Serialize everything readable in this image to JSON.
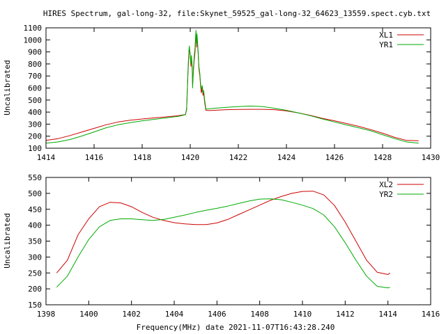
{
  "title": "HIRES Spectrum, gal-long-32, file:Skynet_59525_gal-long-32_64623_13559.spect.cyb.txt",
  "xlabel": "Frequency(MHz) date 2021-11-07T16:43:28.240",
  "chart_data": [
    {
      "type": "line",
      "ylabel": "Uncalibrated",
      "xlim": [
        1414,
        1430
      ],
      "ylim": [
        100,
        1100
      ],
      "xticks": [
        "1414",
        "1416",
        "1418",
        "1420",
        "1422",
        "1424",
        "1426",
        "1428",
        "1430"
      ],
      "yticks": [
        "100",
        "200",
        "300",
        "400",
        "500",
        "600",
        "700",
        "800",
        "900",
        "1000",
        "1100"
      ],
      "legend_position": "top-right",
      "series": [
        {
          "name": "XL1",
          "color": "#cc0000",
          "points": [
            [
              1414.0,
              165
            ],
            [
              1414.5,
              180
            ],
            [
              1415.0,
              205
            ],
            [
              1415.5,
              235
            ],
            [
              1416.0,
              265
            ],
            [
              1416.5,
              295
            ],
            [
              1417.0,
              318
            ],
            [
              1417.5,
              333
            ],
            [
              1418.0,
              343
            ],
            [
              1418.5,
              352
            ],
            [
              1419.0,
              360
            ],
            [
              1419.5,
              370
            ],
            [
              1419.8,
              380
            ],
            [
              1419.85,
              420
            ],
            [
              1419.9,
              700
            ],
            [
              1419.93,
              820
            ],
            [
              1419.96,
              940
            ],
            [
              1420.0,
              870
            ],
            [
              1420.03,
              780
            ],
            [
              1420.05,
              850
            ],
            [
              1420.08,
              760
            ],
            [
              1420.1,
              620
            ],
            [
              1420.13,
              740
            ],
            [
              1420.16,
              820
            ],
            [
              1420.2,
              900
            ],
            [
              1420.22,
              1000
            ],
            [
              1420.24,
              1060
            ],
            [
              1420.26,
              940
            ],
            [
              1420.28,
              1030
            ],
            [
              1420.3,
              980
            ],
            [
              1420.33,
              880
            ],
            [
              1420.36,
              760
            ],
            [
              1420.4,
              700
            ],
            [
              1420.43,
              620
            ],
            [
              1420.46,
              560
            ],
            [
              1420.5,
              600
            ],
            [
              1420.53,
              540
            ],
            [
              1420.56,
              560
            ],
            [
              1420.6,
              480
            ],
            [
              1420.63,
              440
            ],
            [
              1420.65,
              415
            ],
            [
              1420.8,
              413
            ],
            [
              1421.0,
              415
            ],
            [
              1421.5,
              420
            ],
            [
              1422.0,
              422
            ],
            [
              1422.5,
              423
            ],
            [
              1423.0,
              423
            ],
            [
              1423.5,
              420
            ],
            [
              1424.0,
              410
            ],
            [
              1424.5,
              393
            ],
            [
              1425.0,
              372
            ],
            [
              1425.5,
              348
            ],
            [
              1426.0,
              328
            ],
            [
              1426.5,
              305
            ],
            [
              1427.0,
              282
            ],
            [
              1427.5,
              255
            ],
            [
              1428.0,
              225
            ],
            [
              1428.5,
              190
            ],
            [
              1429.0,
              165
            ],
            [
              1429.5,
              162
            ]
          ]
        },
        {
          "name": "YR1",
          "color": "#00aa00",
          "points": [
            [
              1414.0,
              142
            ],
            [
              1414.5,
              152
            ],
            [
              1415.0,
              172
            ],
            [
              1415.5,
              202
            ],
            [
              1416.0,
              235
            ],
            [
              1416.5,
              270
            ],
            [
              1417.0,
              295
            ],
            [
              1417.5,
              313
            ],
            [
              1418.0,
              328
            ],
            [
              1418.5,
              340
            ],
            [
              1419.0,
              352
            ],
            [
              1419.5,
              365
            ],
            [
              1419.8,
              378
            ],
            [
              1419.85,
              430
            ],
            [
              1419.9,
              720
            ],
            [
              1419.93,
              860
            ],
            [
              1419.96,
              950
            ],
            [
              1420.0,
              880
            ],
            [
              1420.03,
              800
            ],
            [
              1420.05,
              870
            ],
            [
              1420.08,
              780
            ],
            [
              1420.1,
              600
            ],
            [
              1420.13,
              760
            ],
            [
              1420.16,
              850
            ],
            [
              1420.2,
              940
            ],
            [
              1420.22,
              1020
            ],
            [
              1420.24,
              1080
            ],
            [
              1420.26,
              960
            ],
            [
              1420.28,
              1050
            ],
            [
              1420.3,
              1000
            ],
            [
              1420.33,
              900
            ],
            [
              1420.36,
              780
            ],
            [
              1420.4,
              720
            ],
            [
              1420.43,
              640
            ],
            [
              1420.46,
              590
            ],
            [
              1420.5,
              620
            ],
            [
              1420.53,
              560
            ],
            [
              1420.56,
              580
            ],
            [
              1420.6,
              500
            ],
            [
              1420.63,
              460
            ],
            [
              1420.65,
              425
            ],
            [
              1420.8,
              428
            ],
            [
              1421.0,
              432
            ],
            [
              1421.5,
              440
            ],
            [
              1422.0,
              446
            ],
            [
              1422.5,
              450
            ],
            [
              1423.0,
              446
            ],
            [
              1423.5,
              432
            ],
            [
              1424.0,
              415
            ],
            [
              1424.5,
              393
            ],
            [
              1425.0,
              370
            ],
            [
              1425.5,
              343
            ],
            [
              1426.0,
              318
            ],
            [
              1426.5,
              293
            ],
            [
              1427.0,
              270
            ],
            [
              1427.5,
              245
            ],
            [
              1428.0,
              212
            ],
            [
              1428.5,
              180
            ],
            [
              1429.0,
              152
            ],
            [
              1429.5,
              142
            ]
          ]
        }
      ]
    },
    {
      "type": "line",
      "ylabel": "Uncalibrated",
      "xlim": [
        1398,
        1416
      ],
      "ylim": [
        150,
        550
      ],
      "xticks": [
        "1398",
        "1400",
        "1402",
        "1404",
        "1406",
        "1408",
        "1410",
        "1412",
        "1414",
        "1416"
      ],
      "yticks": [
        "150",
        "200",
        "250",
        "300",
        "350",
        "400",
        "450",
        "500",
        "550"
      ],
      "legend_position": "top-right",
      "series": [
        {
          "name": "XL2",
          "color": "#cc0000",
          "points": [
            [
              1398.5,
              250
            ],
            [
              1399.0,
              290
            ],
            [
              1399.5,
              370
            ],
            [
              1400.0,
              420
            ],
            [
              1400.5,
              458
            ],
            [
              1401.0,
              472
            ],
            [
              1401.5,
              470
            ],
            [
              1402.0,
              458
            ],
            [
              1402.5,
              440
            ],
            [
              1403.0,
              425
            ],
            [
              1403.5,
              415
            ],
            [
              1404.0,
              408
            ],
            [
              1404.5,
              404
            ],
            [
              1405.0,
              402
            ],
            [
              1405.5,
              402
            ],
            [
              1406.0,
              407
            ],
            [
              1406.5,
              418
            ],
            [
              1407.0,
              433
            ],
            [
              1407.5,
              448
            ],
            [
              1408.0,
              463
            ],
            [
              1408.5,
              478
            ],
            [
              1409.0,
              490
            ],
            [
              1409.5,
              500
            ],
            [
              1410.0,
              506
            ],
            [
              1410.5,
              507
            ],
            [
              1411.0,
              495
            ],
            [
              1411.5,
              462
            ],
            [
              1412.0,
              410
            ],
            [
              1412.5,
              350
            ],
            [
              1413.0,
              290
            ],
            [
              1413.5,
              252
            ],
            [
              1414.0,
              245
            ],
            [
              1414.1,
              250
            ]
          ]
        },
        {
          "name": "YR2",
          "color": "#00aa00",
          "points": [
            [
              1398.5,
              205
            ],
            [
              1399.0,
              240
            ],
            [
              1399.5,
              300
            ],
            [
              1400.0,
              355
            ],
            [
              1400.5,
              395
            ],
            [
              1401.0,
              415
            ],
            [
              1401.5,
              420
            ],
            [
              1402.0,
              420
            ],
            [
              1402.5,
              417
            ],
            [
              1403.0,
              415
            ],
            [
              1403.5,
              418
            ],
            [
              1404.0,
              425
            ],
            [
              1404.5,
              432
            ],
            [
              1405.0,
              440
            ],
            [
              1405.5,
              447
            ],
            [
              1406.0,
              453
            ],
            [
              1406.5,
              460
            ],
            [
              1407.0,
              468
            ],
            [
              1407.5,
              476
            ],
            [
              1408.0,
              482
            ],
            [
              1408.5,
              483
            ],
            [
              1409.0,
              480
            ],
            [
              1409.5,
              472
            ],
            [
              1410.0,
              463
            ],
            [
              1410.5,
              452
            ],
            [
              1411.0,
              432
            ],
            [
              1411.5,
              395
            ],
            [
              1412.0,
              345
            ],
            [
              1412.5,
              290
            ],
            [
              1413.0,
              240
            ],
            [
              1413.5,
              208
            ],
            [
              1414.0,
              203
            ],
            [
              1414.1,
              205
            ]
          ]
        }
      ]
    }
  ]
}
